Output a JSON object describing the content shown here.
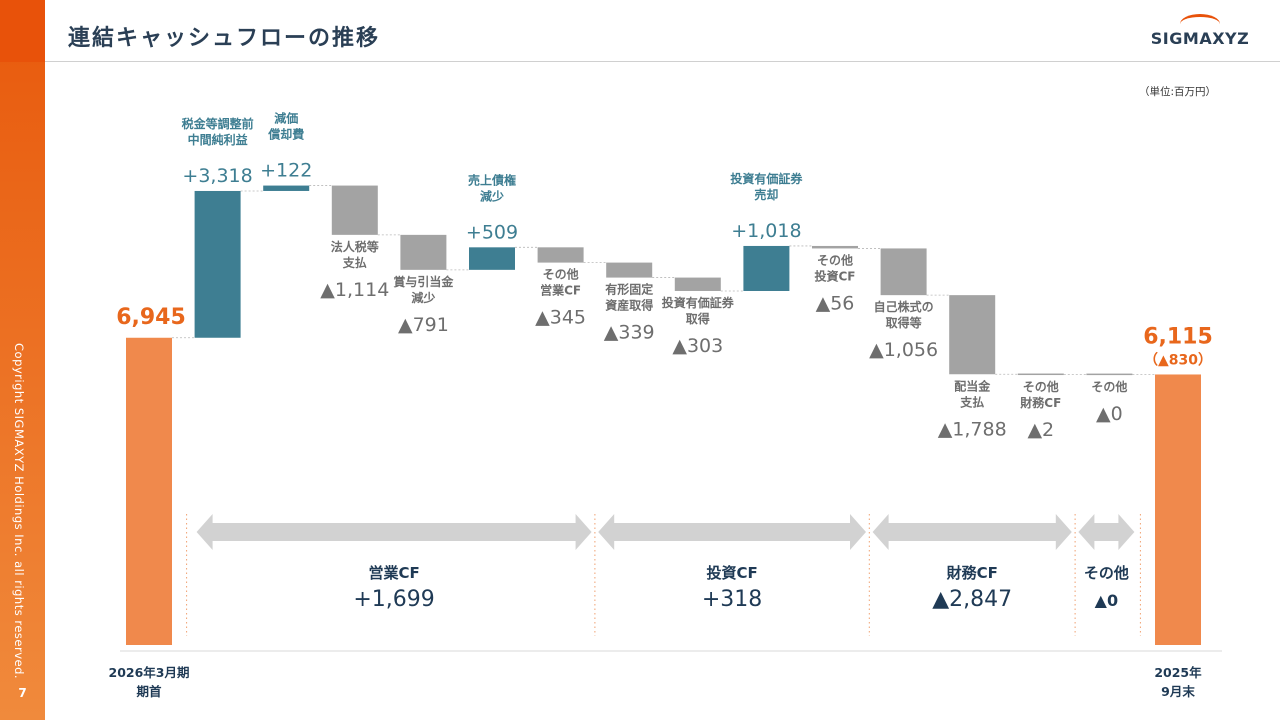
{
  "header": {
    "title": "連結キャッシュフローの推移",
    "logo_text": "SIGMAXYZ",
    "unit": "（単位:百万円）"
  },
  "sidebar": {
    "copyright": "Copyright SIGMAXYZ Holdings Inc. all rights reserved.",
    "page_number": "7"
  },
  "colors": {
    "start_end": "#f0894c",
    "increase": "#3e7e92",
    "decrease": "#a3a3a3",
    "arrow": "#d2d2d2",
    "accent": "#e8520a"
  },
  "chart_data": {
    "type": "bar",
    "subtype": "waterfall",
    "steps": [
      {
        "kind": "total",
        "name_lines": [],
        "value": 6945,
        "value_label": "6,945",
        "category_lines": [
          "2026年3月期",
          "期首"
        ]
      },
      {
        "kind": "delta",
        "name_lines": [
          "税金等調整前",
          "中間純利益"
        ],
        "value": 3318,
        "value_label": "+3,318"
      },
      {
        "kind": "delta",
        "name_lines": [
          "減価",
          "償却費"
        ],
        "value": 122,
        "value_label": "+122"
      },
      {
        "kind": "delta",
        "name_lines": [
          "法人税等",
          "支払"
        ],
        "value": -1114,
        "value_label": "▲1,114"
      },
      {
        "kind": "delta",
        "name_lines": [
          "賞与引当金",
          "減少"
        ],
        "value": -791,
        "value_label": "▲791"
      },
      {
        "kind": "delta",
        "name_lines": [
          "売上債権",
          "減少"
        ],
        "value": 509,
        "value_label": "+509"
      },
      {
        "kind": "delta",
        "name_lines": [
          "その他",
          "営業CF"
        ],
        "value": -345,
        "value_label": "▲345"
      },
      {
        "kind": "delta",
        "name_lines": [
          "有形固定",
          "資産取得"
        ],
        "value": -339,
        "value_label": "▲339"
      },
      {
        "kind": "delta",
        "name_lines": [
          "投資有価証券",
          "取得"
        ],
        "value": -303,
        "value_label": "▲303"
      },
      {
        "kind": "delta",
        "name_lines": [
          "投資有価証券",
          "売却"
        ],
        "value": 1018,
        "value_label": "+1,018"
      },
      {
        "kind": "delta",
        "name_lines": [
          "その他",
          "投資CF"
        ],
        "value": -56,
        "value_label": "▲56"
      },
      {
        "kind": "delta",
        "name_lines": [
          "自己株式の",
          "取得等"
        ],
        "value": -1056,
        "value_label": "▲1,056"
      },
      {
        "kind": "delta",
        "name_lines": [
          "配当金",
          "支払"
        ],
        "value": -1788,
        "value_label": "▲1,788"
      },
      {
        "kind": "delta",
        "name_lines": [
          "その他",
          "財務CF"
        ],
        "value": -2,
        "value_label": "▲2"
      },
      {
        "kind": "delta",
        "name_lines": [
          "その他"
        ],
        "value": 0,
        "value_label": "▲0"
      },
      {
        "kind": "total",
        "name_lines": [],
        "value": 6115,
        "value_label": "6,115",
        "sub_label": "（▲830）",
        "category_lines": [
          "2025年",
          "9月末"
        ]
      }
    ],
    "groups": [
      {
        "name": "営業CF",
        "total_label": "+1,699",
        "from_step": 1,
        "to_step": 6
      },
      {
        "name": "投資CF",
        "total_label": "+318",
        "from_step": 7,
        "to_step": 10
      },
      {
        "name": "財務CF",
        "total_label": "▲2,847",
        "from_step": 11,
        "to_step": 13
      },
      {
        "name": "その他",
        "total_label": "▲0",
        "from_step": 14,
        "to_step": 14
      }
    ]
  }
}
